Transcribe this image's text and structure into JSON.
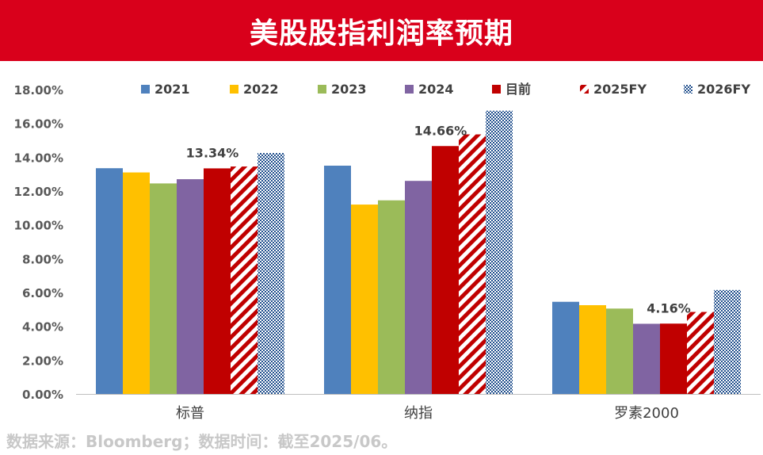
{
  "header": {
    "title": "美股股指利润率预期"
  },
  "footer": {
    "source": "数据来源：Bloomberg；数据时间：截至2025/06。"
  },
  "colors": {
    "header_bg": "#d9001b",
    "s2021": "#4f81bd",
    "s2022": "#ffc000",
    "s2023": "#9bbb59",
    "s2024": "#8064a2",
    "current": "#c00000",
    "fy2025": "#c00000",
    "fy2026": "#1f4e8c"
  },
  "chart_data": {
    "type": "bar",
    "categories": [
      "标普",
      "纳指",
      "罗素2000"
    ],
    "series": [
      {
        "name": "2021",
        "values": [
          13.35,
          13.5,
          5.45
        ],
        "fill": "solid",
        "color": "#4f81bd"
      },
      {
        "name": "2022",
        "values": [
          13.1,
          11.2,
          5.25
        ],
        "fill": "solid",
        "color": "#ffc000"
      },
      {
        "name": "2023",
        "values": [
          12.45,
          11.45,
          5.05
        ],
        "fill": "solid",
        "color": "#9bbb59"
      },
      {
        "name": "2024",
        "values": [
          12.7,
          12.6,
          4.15
        ],
        "fill": "solid",
        "color": "#8064a2"
      },
      {
        "name": "目前",
        "values": [
          13.34,
          14.66,
          4.16
        ],
        "fill": "solid",
        "color": "#c00000"
      },
      {
        "name": "2025FY",
        "values": [
          13.45,
          15.35,
          4.85
        ],
        "fill": "diagonal-stripes",
        "color": "#c00000"
      },
      {
        "name": "2026FY",
        "values": [
          14.25,
          16.75,
          6.15
        ],
        "fill": "checker",
        "color": "#1f4e8c"
      }
    ],
    "annotations": [
      {
        "series": "目前",
        "category": "标普",
        "text": "13.34%"
      },
      {
        "series": "目前",
        "category": "纳指",
        "text": "14.66%"
      },
      {
        "series": "目前",
        "category": "罗素2000",
        "text": "4.16%"
      }
    ],
    "yticks": [
      "0.00%",
      "2.00%",
      "4.00%",
      "6.00%",
      "8.00%",
      "10.00%",
      "12.00%",
      "14.00%",
      "16.00%",
      "18.00%"
    ],
    "ylim": [
      0,
      18
    ],
    "grid": false,
    "legend_position": "top"
  }
}
